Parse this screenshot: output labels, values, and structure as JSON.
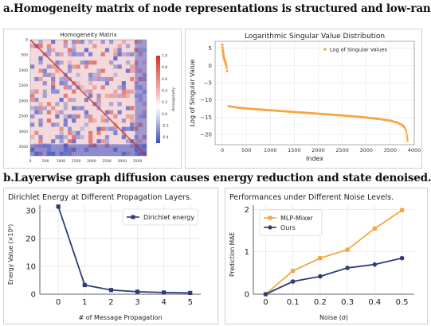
{
  "titles": {
    "a": "a.Homogeneity matrix of node representations is structured and low-rank.",
    "b": "b.Layerwise graph diffusion causes energy reduction and state denoised."
  },
  "colors": {
    "heat_red": "#d7301f",
    "heat_blue": "#3b4cc0",
    "orange": "#f5a640",
    "navy": "#2f3a7a"
  },
  "chart_data": [
    {
      "id": "homogeneity",
      "type": "heatmap",
      "title": "Homogeneity Matrix",
      "xticks": [
        "0",
        "500",
        "1000",
        "1500",
        "2000",
        "2500",
        "3000",
        "3500"
      ],
      "yticks": [
        "0",
        "500",
        "1000",
        "1500",
        "2000",
        "2500",
        "3000",
        "3500"
      ],
      "n": 3800,
      "colorbar": {
        "label": "Homogeneity",
        "range": [
          -0.5,
          1.0
        ],
        "ticks": [
          "1.0",
          "0.8",
          "0.6",
          "0.4",
          "0.2",
          "0.0",
          "-0.2",
          "-0.4"
        ],
        "tick_values": [
          1.0,
          0.8,
          0.6,
          0.4,
          0.2,
          0.0,
          -0.2,
          -0.4
        ]
      }
    },
    {
      "id": "singular",
      "type": "scatter",
      "title": "Logarithmic Singular Value Distribution",
      "xlabel": "Index",
      "ylabel": "Log of Singular Value",
      "legend": "Log of Singular Values",
      "legend_position": "top-right",
      "xlim": [
        -150,
        4000
      ],
      "ylim": [
        -23,
        7
      ],
      "xticks": [
        0,
        500,
        1000,
        1500,
        2000,
        2500,
        3000,
        3500,
        4000
      ],
      "yticks": [
        5,
        0,
        -5,
        -10,
        -15,
        -20
      ],
      "grid": true,
      "head": {
        "x": [
          0,
          5,
          10,
          15,
          20,
          25,
          30,
          40,
          50,
          60,
          70,
          80,
          90,
          100
        ],
        "y": [
          6.0,
          5.2,
          4.5,
          3.9,
          3.4,
          2.9,
          2.4,
          1.9,
          1.5,
          1.1,
          0.7,
          0.2,
          -0.6,
          -1.6
        ]
      },
      "curve": {
        "x": [
          130,
          300,
          600,
          1000,
          1500,
          2000,
          2500,
          3000,
          3300,
          3500,
          3650,
          3750,
          3800,
          3830,
          3850,
          3860
        ],
        "y": [
          -11.8,
          -12.2,
          -12.6,
          -13.0,
          -13.5,
          -14.0,
          -14.5,
          -15.1,
          -15.6,
          -16.0,
          -16.6,
          -17.3,
          -18.0,
          -19.0,
          -20.5,
          -21.8
        ]
      }
    },
    {
      "id": "dirichlet",
      "type": "line",
      "title": "Dirichlet Energy at Different Propagation Layers.",
      "xlabel": "# of Message Propagation",
      "ylabel": "Energy Value (×10⁸)",
      "x": [
        0,
        1,
        2,
        3,
        4,
        5
      ],
      "ylim": [
        0,
        32
      ],
      "yticks": [
        0,
        10,
        20,
        30
      ],
      "series": [
        {
          "name": "Dirichlet energy",
          "values": [
            31.5,
            3.3,
            1.5,
            0.9,
            0.6,
            0.45
          ]
        }
      ],
      "legend_position": "top-right",
      "grid": true
    },
    {
      "id": "noise",
      "type": "line",
      "title": "Performances under Different Noise Levels.",
      "xlabel": "Noise (σ)",
      "ylabel": "Prediction MAE",
      "x": [
        0,
        0.1,
        0.2,
        0.3,
        0.4,
        0.5
      ],
      "xticks": [
        "0",
        "0.1",
        "0.2",
        "0.3",
        "0.4",
        "0.5"
      ],
      "ylim": [
        0,
        2.1
      ],
      "yticks": [
        0,
        1,
        2
      ],
      "series": [
        {
          "name": "MLP-Mixer",
          "values": [
            0.0,
            0.55,
            0.85,
            1.05,
            1.55,
            1.98
          ]
        },
        {
          "name": "Ours",
          "values": [
            0.0,
            0.3,
            0.42,
            0.62,
            0.7,
            0.85
          ]
        }
      ],
      "legend_position": "top-left",
      "grid": true
    }
  ]
}
